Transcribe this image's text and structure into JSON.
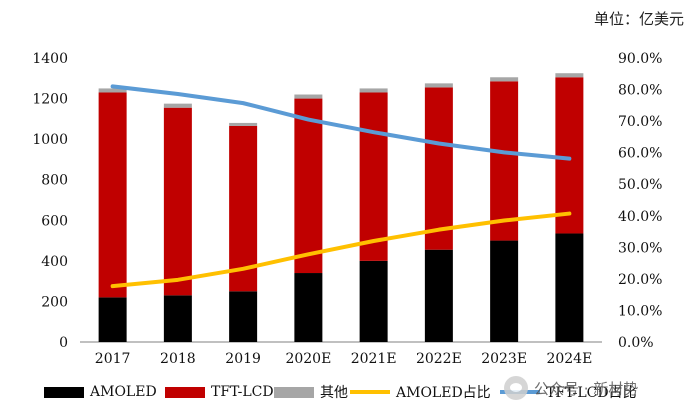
{
  "unit_label": "单位：亿美元",
  "watermark": "公众号 · 新材势",
  "chart_data": {
    "type": "bar",
    "stacked": true,
    "categories": [
      "2017",
      "2018",
      "2019",
      "2020E",
      "2021E",
      "2022E",
      "2023E",
      "2024E"
    ],
    "series": [
      {
        "name": "AMOLED",
        "axis": "left",
        "kind": "bar",
        "color": "#000000",
        "values": [
          220,
          230,
          250,
          340,
          400,
          455,
          500,
          535
        ]
      },
      {
        "name": "TFT-LCD",
        "axis": "left",
        "kind": "bar",
        "color": "#c00000",
        "values": [
          1010,
          925,
          815,
          860,
          830,
          800,
          785,
          770
        ]
      },
      {
        "name": "其他",
        "axis": "left",
        "kind": "bar",
        "color": "#a6a6a6",
        "values": [
          20,
          20,
          15,
          20,
          20,
          20,
          20,
          20
        ]
      },
      {
        "name": "AMOLED占比",
        "axis": "right",
        "kind": "line",
        "color": "#ffc000",
        "values": [
          0.177,
          0.197,
          0.232,
          0.278,
          0.32,
          0.356,
          0.385,
          0.407
        ]
      },
      {
        "name": "TFT-LCD占比",
        "axis": "right",
        "kind": "line",
        "color": "#5b9bd5",
        "values": [
          0.81,
          0.786,
          0.757,
          0.705,
          0.665,
          0.629,
          0.601,
          0.581
        ]
      }
    ],
    "y_left": {
      "min": 0,
      "max": 1400,
      "ticks": [
        "0",
        "200",
        "400",
        "600",
        "800",
        "1000",
        "1200",
        "1400"
      ]
    },
    "y_right": {
      "min": 0,
      "max": 0.9,
      "ticks": [
        "0.0%",
        "10.0%",
        "20.0%",
        "30.0%",
        "40.0%",
        "50.0%",
        "60.0%",
        "70.0%",
        "80.0%",
        "90.0%"
      ]
    },
    "legend": [
      "AMOLED",
      "TFT-LCD",
      "其他",
      "AMOLED占比",
      "TFT-LCD占比"
    ],
    "legend_position": "bottom"
  }
}
